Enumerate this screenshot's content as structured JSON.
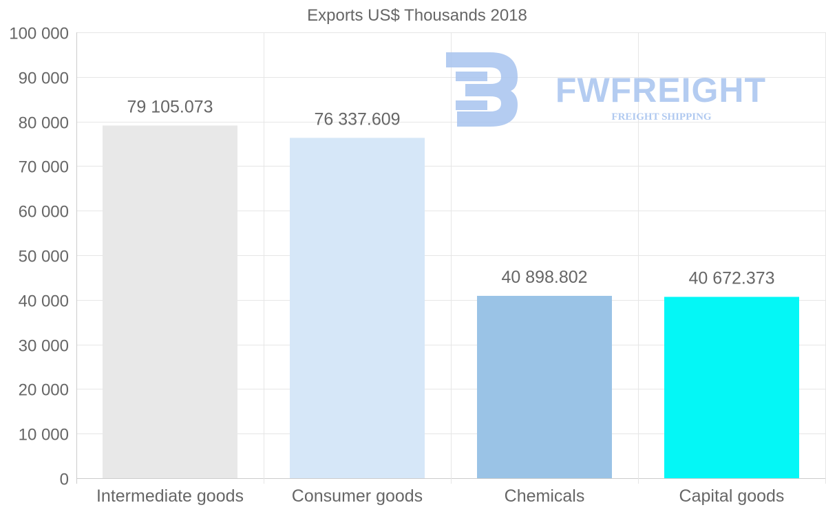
{
  "chart_data": {
    "type": "bar",
    "title": "Exports US$ Thousands 2018",
    "categories": [
      "Intermediate goods",
      "Consumer goods",
      "Chemicals",
      "Capital goods"
    ],
    "values": [
      79105.073,
      76337.609,
      40898.802,
      40672.373
    ],
    "data_labels": [
      "79 105.073",
      "76 337.609",
      "40 898.802",
      "40 672.373"
    ],
    "colors": [
      "#e8e8e8",
      "#d6e7f8",
      "#9ac3e6",
      "#04f7f6"
    ],
    "ylim": [
      0,
      100000
    ],
    "yticks": [
      0,
      10000,
      20000,
      30000,
      40000,
      50000,
      60000,
      70000,
      80000,
      90000,
      100000
    ],
    "ytick_labels": [
      "0",
      "10 000",
      "20 000",
      "30 000",
      "40 000",
      "50 000",
      "60 000",
      "70 000",
      "80 000",
      "90 000",
      "100 000"
    ],
    "xlabel": "",
    "ylabel": "",
    "grid": true
  },
  "watermark": {
    "brand": "FWFREIGHT",
    "tagline": "FREIGHT SHIPPING",
    "color": "#a8c4ef"
  }
}
